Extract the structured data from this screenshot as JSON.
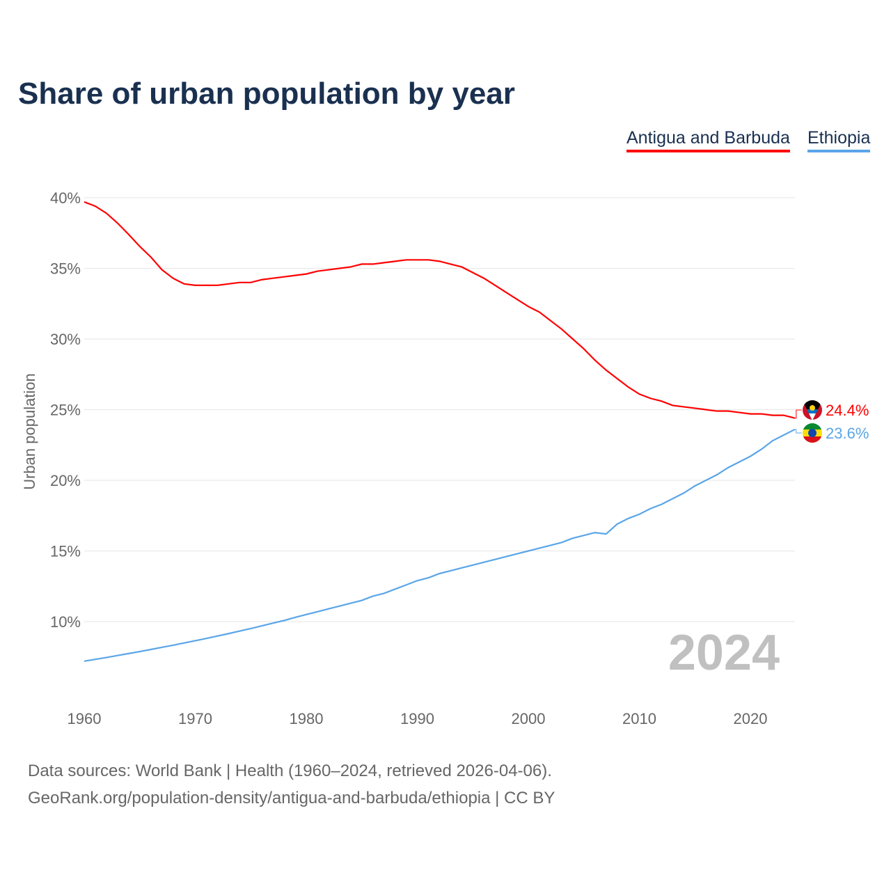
{
  "title": "Share of urban population by year",
  "legend": [
    "Antigua and Barbuda",
    "Ethiopia"
  ],
  "year_label": "2024",
  "source_line1": "Data sources: World Bank | Health (1960–2024, retrieved 2026-04-06).",
  "source_line2": "GeoRank.org/population-density/antigua-and-barbuda/ethiopia | CC BY",
  "chart_data": {
    "type": "line",
    "title": "Share of urban population by year",
    "xlabel": "",
    "ylabel": "Urban population",
    "xlim": [
      1960,
      2024
    ],
    "ylim": [
      5,
      40
    ],
    "yticks": [
      10,
      15,
      20,
      25,
      30,
      35,
      40
    ],
    "ytick_labels": [
      "10%",
      "15%",
      "20%",
      "25%",
      "30%",
      "35%",
      "40%"
    ],
    "xticks": [
      1960,
      1970,
      1980,
      1990,
      2000,
      2010,
      2020
    ],
    "xtick_labels": [
      "1960",
      "1970",
      "1980",
      "1990",
      "2000",
      "2010",
      "2020"
    ],
    "grid": true,
    "legend_position": "top-right",
    "x": [
      1960,
      1961,
      1962,
      1963,
      1964,
      1965,
      1966,
      1967,
      1968,
      1969,
      1970,
      1971,
      1972,
      1973,
      1974,
      1975,
      1976,
      1977,
      1978,
      1979,
      1980,
      1981,
      1982,
      1983,
      1984,
      1985,
      1986,
      1987,
      1988,
      1989,
      1990,
      1991,
      1992,
      1993,
      1994,
      1995,
      1996,
      1997,
      1998,
      1999,
      2000,
      2001,
      2002,
      2003,
      2004,
      2005,
      2006,
      2007,
      2008,
      2009,
      2010,
      2011,
      2012,
      2013,
      2014,
      2015,
      2016,
      2017,
      2018,
      2019,
      2020,
      2021,
      2022,
      2023,
      2024
    ],
    "series": [
      {
        "name": "Antigua and Barbuda",
        "color": "#ff0000",
        "end_label": "24.4%",
        "values": [
          39.7,
          39.4,
          38.9,
          38.2,
          37.4,
          36.55,
          35.8,
          34.9,
          34.3,
          33.9,
          33.8,
          33.8,
          33.8,
          33.9,
          34.0,
          34.0,
          34.2,
          34.3,
          34.4,
          34.5,
          34.6,
          34.8,
          34.9,
          35.0,
          35.1,
          35.3,
          35.3,
          35.4,
          35.5,
          35.6,
          35.6,
          35.6,
          35.5,
          35.3,
          35.1,
          34.7,
          34.3,
          33.8,
          33.3,
          32.8,
          32.3,
          31.9,
          31.3,
          30.7,
          30.0,
          29.3,
          28.5,
          27.8,
          27.2,
          26.6,
          26.1,
          25.8,
          25.6,
          25.3,
          25.2,
          25.1,
          25.0,
          24.9,
          24.9,
          24.8,
          24.7,
          24.7,
          24.6,
          24.6,
          24.4
        ]
      },
      {
        "name": "Ethiopia",
        "color": "#5aa5e8",
        "end_label": "23.6%",
        "values": [
          7.2,
          7.33,
          7.46,
          7.6,
          7.74,
          7.88,
          8.03,
          8.18,
          8.33,
          8.49,
          8.65,
          8.81,
          8.98,
          9.15,
          9.33,
          9.51,
          9.7,
          9.89,
          10.08,
          10.3,
          10.5,
          10.7,
          10.9,
          11.1,
          11.3,
          11.5,
          11.8,
          12.0,
          12.3,
          12.6,
          12.9,
          13.1,
          13.4,
          13.6,
          13.8,
          14.0,
          14.2,
          14.4,
          14.6,
          14.8,
          15.0,
          15.2,
          15.4,
          15.6,
          15.9,
          16.1,
          16.3,
          16.2,
          16.9,
          17.3,
          17.6,
          18.0,
          18.3,
          18.7,
          19.1,
          19.6,
          20.0,
          20.4,
          20.9,
          21.3,
          21.7,
          22.2,
          22.8,
          23.2,
          23.6
        ]
      }
    ]
  }
}
